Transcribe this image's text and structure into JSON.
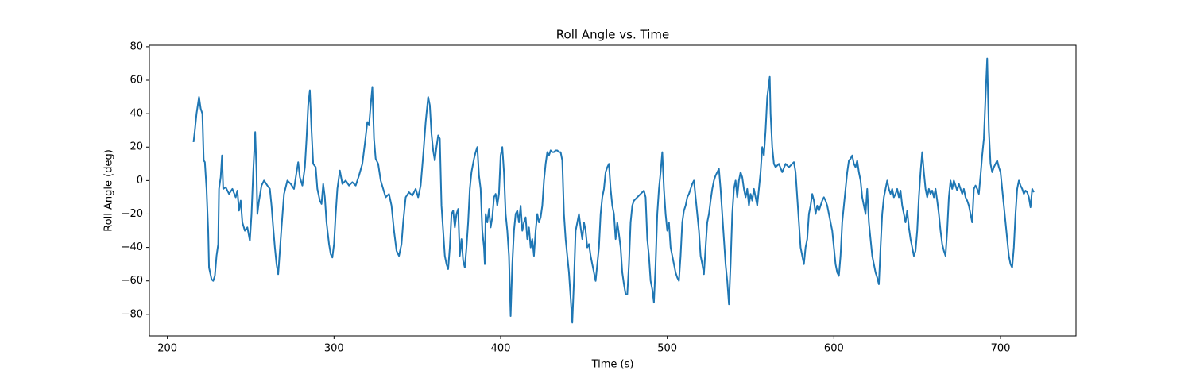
{
  "chart_data": {
    "type": "line",
    "title": "Roll Angle vs. Time",
    "x_label": "Time (s)",
    "y_label": "Roll Angle (deg)",
    "color": "#1f77b4",
    "x": [
      215.7,
      216.5,
      217.5,
      219,
      220,
      221,
      221.8,
      222.5,
      223.5,
      224.5,
      225,
      226.5,
      227.5,
      228.5,
      229.5,
      230.5,
      231,
      232,
      232.8,
      233.5,
      235,
      237,
      239,
      241,
      242,
      243,
      244,
      245,
      246.5,
      248,
      249.5,
      250.5,
      251.5,
      252.7,
      253.5,
      254,
      255,
      256.5,
      258,
      260,
      261.5,
      262.5,
      263.5,
      264.5,
      265.5,
      266.5,
      267.5,
      268.5,
      270,
      272,
      274,
      276,
      277.5,
      278.5,
      279.5,
      281,
      282.5,
      283.5,
      284.5,
      285.5,
      286.5,
      287.5,
      289,
      290,
      291.5,
      292.5,
      293.5,
      294.5,
      295.5,
      297,
      298,
      299,
      300,
      301,
      302,
      303.5,
      305,
      307,
      309,
      311,
      313,
      315,
      317,
      318.5,
      320,
      321,
      322,
      323,
      324,
      325,
      326.5,
      328,
      329.5,
      331,
      333,
      334.5,
      336,
      337.5,
      339,
      340.5,
      341.5,
      343,
      345,
      347,
      349,
      350.5,
      352,
      353.5,
      355,
      356.5,
      357.5,
      358.5,
      359.5,
      360.5,
      361.5,
      362.5,
      363.5,
      364.5,
      365.5,
      366.5,
      367.5,
      368.5,
      369.5,
      370.5,
      371.5,
      372.5,
      373.5,
      374.5,
      375.5,
      376.5,
      377.5,
      378.5,
      379.5,
      380.5,
      381.5,
      382.5,
      384,
      385,
      386,
      387,
      388,
      389,
      390,
      390.5,
      391,
      392,
      393,
      394,
      395,
      396,
      397,
      398,
      399,
      400,
      401,
      402,
      403,
      404,
      405,
      406,
      407,
      408,
      409,
      410,
      411,
      412,
      413,
      414,
      415,
      416,
      417,
      418,
      419,
      420,
      421,
      422,
      423,
      424,
      425,
      426,
      427,
      428,
      429,
      430,
      431,
      432,
      433,
      434,
      435,
      436,
      437,
      438,
      439,
      440,
      441,
      442,
      443,
      444,
      445,
      446,
      447,
      448,
      449,
      450,
      451,
      452,
      453,
      454,
      455,
      456,
      457,
      458,
      459,
      460,
      461,
      462,
      463,
      464,
      465,
      466,
      467,
      468,
      469,
      470,
      471,
      472,
      473,
      474,
      475,
      476,
      477,
      478,
      479,
      480,
      481,
      482,
      483,
      484,
      485,
      486,
      487,
      488,
      489,
      490,
      491,
      492,
      493,
      494,
      495,
      496,
      497,
      498,
      499,
      500,
      501,
      502,
      503,
      504,
      505,
      506,
      507,
      508,
      509,
      510,
      511,
      512,
      513,
      514,
      515,
      516,
      517,
      518,
      519,
      520,
      521,
      522,
      523,
      524,
      525,
      526,
      527,
      528,
      529,
      530,
      531,
      532,
      533,
      534,
      535,
      536,
      537,
      538,
      539,
      540,
      541,
      542,
      543,
      544,
      545,
      546,
      547,
      548,
      549,
      550,
      551,
      552,
      553,
      554,
      555,
      556,
      557,
      558,
      559,
      560,
      561,
      561.5,
      562,
      563,
      564,
      565,
      567,
      569,
      571,
      573,
      575,
      576,
      577,
      578,
      579,
      580,
      581,
      582,
      583,
      584,
      585,
      586,
      587,
      588,
      589,
      590,
      591,
      592,
      593,
      594,
      595,
      596,
      597,
      598,
      599,
      600,
      601,
      602,
      603,
      604,
      605,
      606,
      607,
      608,
      609,
      610,
      611,
      612,
      613,
      614,
      615,
      616,
      617,
      618,
      619,
      620,
      621,
      622,
      623,
      624,
      625,
      626,
      627,
      628,
      629,
      630,
      631,
      632,
      633,
      634,
      635,
      636,
      637,
      638,
      639,
      640,
      641,
      642,
      643,
      644,
      645,
      646,
      647,
      648,
      649,
      650,
      651,
      652,
      653,
      654,
      655,
      656,
      657,
      658,
      659,
      660,
      661,
      662,
      663,
      664,
      665,
      666,
      667,
      668,
      669,
      670,
      671,
      672,
      673,
      674,
      675,
      676,
      677,
      678,
      679,
      680,
      681,
      682,
      683,
      684,
      685,
      686,
      687,
      688,
      689,
      690,
      691,
      692,
      693,
      694,
      695,
      696,
      697,
      698,
      699,
      700,
      701,
      702,
      703,
      704,
      705,
      706,
      707,
      708,
      709,
      710,
      711,
      712,
      713,
      714,
      715,
      716,
      717,
      718,
      719,
      720
    ],
    "values": [
      23,
      30,
      40,
      50,
      43,
      40,
      12,
      11,
      -5,
      -30,
      -52,
      -59,
      -60,
      -57,
      -45,
      -38,
      -5,
      2,
      15,
      -5,
      -4,
      -8,
      -5,
      -10,
      -6,
      -18,
      -12,
      -25,
      -30,
      -28,
      -36,
      -20,
      5,
      29,
      5,
      -20,
      -12,
      -3,
      0,
      -3,
      -5,
      -15,
      -28,
      -40,
      -50,
      -56,
      -42,
      -28,
      -8,
      0,
      -2,
      -5,
      5,
      11,
      2,
      -3,
      8,
      25,
      45,
      54,
      30,
      10,
      8,
      -5,
      -12,
      -14,
      -2,
      -10,
      -25,
      -38,
      -44,
      -46,
      -38,
      -20,
      -5,
      6,
      -2,
      0,
      -3,
      -1,
      -3,
      3,
      10,
      22,
      35,
      33,
      45,
      56,
      25,
      13,
      10,
      0,
      -5,
      -10,
      -8,
      -15,
      -30,
      -42,
      -45,
      -38,
      -25,
      -10,
      -7,
      -9,
      -5,
      -10,
      -3,
      15,
      35,
      50,
      45,
      28,
      18,
      12,
      20,
      27,
      25,
      -15,
      -30,
      -45,
      -50,
      -53,
      -40,
      -20,
      -18,
      -28,
      -20,
      -17,
      -45,
      -35,
      -48,
      -52,
      -40,
      -25,
      -5,
      5,
      13,
      17,
      20,
      3,
      -5,
      -30,
      -40,
      -50,
      -20,
      -25,
      -17,
      -28,
      -22,
      -10,
      -8,
      -15,
      -8,
      15,
      20,
      5,
      -20,
      -30,
      -45,
      -81,
      -50,
      -30,
      -20,
      -18,
      -25,
      -15,
      -30,
      -25,
      -22,
      -35,
      -28,
      -40,
      -35,
      -45,
      -30,
      -20,
      -25,
      -22,
      -15,
      0,
      10,
      17,
      15,
      18,
      17,
      17,
      18,
      18,
      17,
      17,
      12,
      -20,
      -35,
      -45,
      -55,
      -70,
      -85,
      -60,
      -30,
      -25,
      -20,
      -28,
      -35,
      -25,
      -30,
      -40,
      -38,
      -45,
      -50,
      -55,
      -60,
      -50,
      -40,
      -20,
      -10,
      -5,
      5,
      8,
      10,
      -5,
      -15,
      -20,
      -35,
      -25,
      -32,
      -40,
      -55,
      -62,
      -68,
      -68,
      -50,
      -25,
      -15,
      -12,
      -11,
      -10,
      -9,
      -8,
      -7,
      -6,
      -10,
      -35,
      -45,
      -60,
      -65,
      -73,
      -50,
      -20,
      -5,
      5,
      17,
      -5,
      -20,
      -30,
      -25,
      -40,
      -45,
      -50,
      -55,
      -58,
      -60,
      -45,
      -25,
      -18,
      -15,
      -10,
      -8,
      -5,
      -2,
      0,
      -10,
      -20,
      -30,
      -45,
      -50,
      -56,
      -40,
      -25,
      -20,
      -12,
      -5,
      0,
      3,
      5,
      7,
      -5,
      -20,
      -35,
      -50,
      -60,
      -74,
      -50,
      -20,
      -5,
      0,
      -10,
      0,
      5,
      2,
      -5,
      -10,
      -5,
      -15,
      -8,
      -12,
      -5,
      -10,
      -15,
      -5,
      5,
      20,
      15,
      30,
      50,
      58,
      62,
      40,
      20,
      10,
      8,
      10,
      5,
      10,
      8,
      10,
      11,
      5,
      -10,
      -25,
      -40,
      -45,
      -50,
      -40,
      -35,
      -20,
      -15,
      -8,
      -12,
      -20,
      -15,
      -18,
      -15,
      -12,
      -10,
      -12,
      -15,
      -20,
      -25,
      -30,
      -40,
      -50,
      -55,
      -57,
      -45,
      -25,
      -15,
      -5,
      5,
      12,
      13,
      15,
      10,
      8,
      12,
      5,
      0,
      -10,
      -15,
      -20,
      -5,
      -25,
      -35,
      -45,
      -50,
      -55,
      -58,
      -62,
      -40,
      -20,
      -10,
      -5,
      0,
      -5,
      -8,
      -5,
      -10,
      -8,
      -5,
      -10,
      -6,
      -15,
      -20,
      -25,
      -18,
      -28,
      -35,
      -40,
      -45,
      -42,
      -30,
      -10,
      5,
      17,
      5,
      -5,
      -10,
      -5,
      -8,
      -6,
      -10,
      -5,
      -12,
      -20,
      -30,
      -38,
      -42,
      -45,
      -30,
      -10,
      0,
      -5,
      0,
      -3,
      -6,
      -2,
      -5,
      -8,
      -5,
      -10,
      -12,
      -15,
      -20,
      -25,
      -5,
      -3,
      -5,
      -8,
      3,
      15,
      25,
      50,
      73,
      30,
      10,
      5,
      8,
      10,
      12,
      8,
      5,
      -5,
      -15,
      -25,
      -35,
      -45,
      -50,
      -52,
      -40,
      -20,
      -5,
      0,
      -3,
      -5,
      -8,
      -6,
      -7,
      -10,
      -16,
      -5,
      -7
    ],
    "xlim": [
      189.2,
      745.3
    ],
    "ylim": [
      -92.9,
      80.9
    ],
    "xticks": [
      200,
      300,
      400,
      500,
      600,
      700
    ],
    "yticks": [
      {
        "value": -80,
        "label": "−80"
      },
      {
        "value": -60,
        "label": "−60"
      },
      {
        "value": -40,
        "label": "−40"
      },
      {
        "value": -20,
        "label": "−20"
      },
      0,
      20,
      40,
      60,
      80
    ]
  }
}
